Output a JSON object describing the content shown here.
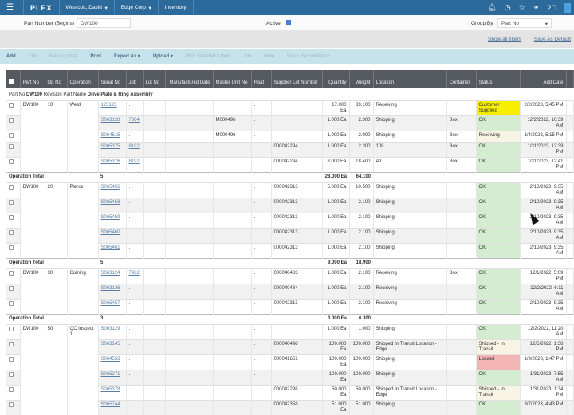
{
  "topbar": {
    "logo": "PLEX",
    "user": "Westcott, David",
    "company": "Edge Corp",
    "app": "Inventory"
  },
  "filter": {
    "part_label": "Part Number (Begins)",
    "part_value": "DW100",
    "active_label": "Active",
    "active_checked": true,
    "group_label": "Group By",
    "group_value": "Part No"
  },
  "links": {
    "show_all": "Show all filters",
    "save_default": "Save As Default"
  },
  "toolbar": [
    "Add",
    "Edit",
    "Mass Update",
    "Print",
    "Export As ▾",
    "Upload ▾",
    "Print Selected Labels",
    "Job",
    "Note",
    "Piece Reconciliation"
  ],
  "toolbar_enabled": [
    true,
    false,
    false,
    true,
    true,
    true,
    false,
    false,
    false,
    false
  ],
  "columns": [
    "Part No",
    "Op No",
    "Operation",
    "Serial No",
    "Job",
    "Lot No",
    "Manufactured Date",
    "Master Unit No",
    "Heat",
    "Supplier Lot Number",
    "Quantity",
    "Weight",
    "Location",
    "Container",
    "Status",
    "Add Date"
  ],
  "group": {
    "prefix": "Part No",
    "part": "DW100",
    "rev": "Revision",
    "name_label": "Part Name",
    "name": "Drive Plate & Ring Assembly"
  },
  "total_label": "Operation Total",
  "colors": {
    "ok": "#d4edd0",
    "customer_supplied": "#f6f000",
    "loaded": "#f3b4b4",
    "receiving": "#f8f4e4",
    "header": "#555a60",
    "topbar": "#2c6a9c"
  },
  "operations": [
    {
      "part": "DW100",
      "op": "10",
      "operation": "Weld",
      "rows": [
        {
          "serial": "123123",
          "job": ".",
          "master": "",
          "heat": ".",
          "lot": "",
          "qty": "17.000 Ea",
          "wt": "39.100",
          "loc": "Receiving",
          "cont": "",
          "status": "Customer Supplied",
          "st": "yellow",
          "date": "2/2/2023, 5:45 PM"
        },
        {
          "serial": "S063128",
          "job": "7864",
          "master": "M000496",
          "heat": ".",
          "lot": "",
          "qty": "1.000 Ea",
          "wt": "2.300",
          "loc": "Shipping",
          "cont": "Box",
          "status": "OK",
          "st": "ok",
          "date": "12/2/2022, 10:39 AM"
        },
        {
          "serial": "S064515",
          "job": ".",
          "master": "M000496",
          "heat": ".",
          "lot": "",
          "qty": "1.000 Ea",
          "wt": "2.000",
          "loc": "Shipping",
          "cont": "Box",
          "status": "Receiving",
          "st": "beige",
          "date": "1/4/2023, 5:15 PM"
        },
        {
          "serial": "S065375",
          "job": "8192",
          "master": "",
          "heat": ".",
          "lot": "000042294",
          "qty": "1.000 Ea",
          "wt": "2.300",
          "loc": "108",
          "cont": "Box",
          "status": "OK",
          "st": "ok",
          "date": "1/31/2023, 12:39 PM"
        },
        {
          "serial": "S065376",
          "job": "8192",
          "master": "",
          "heat": ".",
          "lot": "000042294",
          "qty": "8.000 Ea",
          "wt": "18.400",
          "loc": "A1",
          "cont": "Box",
          "status": "OK",
          "st": "ok",
          "date": "1/31/2023, 12:41 PM"
        }
      ],
      "total": {
        "count": "5",
        "qty": "28.000 Ea",
        "wt": "64.100"
      }
    },
    {
      "part": "DW100",
      "op": "20",
      "operation": "Pierce",
      "rows": [
        {
          "serial": "S065456",
          "job": ".",
          "master": "",
          "heat": ".",
          "lot": "000042313",
          "qty": "5.000 Ea",
          "wt": "10.500",
          "loc": "Shipping",
          "cont": "",
          "status": "OK",
          "st": "ok",
          "date": "2/10/2023, 9:35 AM"
        },
        {
          "serial": "S065458",
          "job": ".",
          "master": "",
          "heat": ".",
          "lot": "000042313",
          "qty": "1.000 Ea",
          "wt": "2.100",
          "loc": "Shipping",
          "cont": "",
          "status": "OK",
          "st": "ok",
          "date": "2/10/2023, 9:35 AM"
        },
        {
          "serial": "S065459",
          "job": ".",
          "master": "",
          "heat": ".",
          "lot": "000042313",
          "qty": "1.000 Ea",
          "wt": "2.100",
          "loc": "Shipping",
          "cont": "",
          "status": "OK",
          "st": "ok",
          "date": "2/10/2023, 9:35 AM"
        },
        {
          "serial": "S065460",
          "job": ".",
          "master": "",
          "heat": ".",
          "lot": "000042313",
          "qty": "1.000 Ea",
          "wt": "2.100",
          "loc": "Shipping",
          "cont": "",
          "status": "OK",
          "st": "ok",
          "date": "2/10/2023, 9:35 AM"
        },
        {
          "serial": "S065461",
          "job": ".",
          "master": "",
          "heat": ".",
          "lot": "000042313",
          "qty": "1.000 Ea",
          "wt": "2.100",
          "loc": "Shipping",
          "cont": "",
          "status": "OK",
          "st": "ok",
          "date": "2/10/2023, 9:35 AM"
        }
      ],
      "total": {
        "count": "5",
        "qty": "9.000 Ea",
        "wt": "18.900"
      }
    },
    {
      "part": "DW100",
      "op": "30",
      "operation": "Coining",
      "rows": [
        {
          "serial": "S063124",
          "job": "7982",
          "master": "",
          "heat": ".",
          "lot": "000040483",
          "qty": "1.000 Ea",
          "wt": "2.100",
          "loc": "Receiving",
          "cont": "Box",
          "status": "OK",
          "st": "ok",
          "date": "12/1/2022, 5:09 PM"
        },
        {
          "serial": "S063126",
          "job": ".",
          "master": "",
          "heat": ".",
          "lot": "000040484",
          "qty": "1.000 Ea",
          "wt": "2.100",
          "loc": "Receiving",
          "cont": "",
          "status": "OK",
          "st": "ok",
          "date": "12/2/2022, 6:11 AM"
        },
        {
          "serial": "S065457",
          "job": ".",
          "master": "",
          "heat": ".",
          "lot": "000042313",
          "qty": "1.000 Ea",
          "wt": "2.100",
          "loc": "Receiving",
          "cont": "",
          "status": "OK",
          "st": "ok",
          "date": "2/10/2023, 9:35 AM"
        }
      ],
      "total": {
        "count": "3",
        "qty": "3.000 Ea",
        "wt": "6.300"
      }
    },
    {
      "part": "DW100",
      "op": "50",
      "operation": "QC Inspect 1",
      "rows": [
        {
          "serial": "S063129",
          "job": ".",
          "master": "",
          "heat": ".",
          "lot": "",
          "qty": "1.000 Ea",
          "wt": "1.000",
          "loc": "Shipping",
          "cont": "",
          "status": "OK",
          "st": "ok",
          "date": "12/2/2022, 11:20 AM"
        },
        {
          "serial": "S063145",
          "job": ".",
          "master": "",
          "heat": ".",
          "lot": "000040498",
          "qty": "100.000 Ea",
          "wt": "100.000",
          "loc": "Shipped In Transit Location - Edge",
          "cont": "",
          "status": "Shipped - In Transit",
          "st": "beige",
          "date": "12/5/2022, 1:38 PM"
        },
        {
          "serial": "S064553",
          "job": ".",
          "master": "",
          "heat": ".",
          "lot": "000041651",
          "qty": "100.000 Ea",
          "wt": "100.000",
          "loc": "Shipping",
          "cont": "",
          "status": "Loaded",
          "st": "red",
          "date": "1/9/2023, 1:47 PM"
        },
        {
          "serial": "S065271",
          "job": ".",
          "master": "",
          "heat": ".",
          "lot": "",
          "qty": "100.000 Ea",
          "wt": "100.000",
          "loc": "Shipping",
          "cont": "",
          "status": "OK",
          "st": "ok",
          "date": "1/31/2023, 7:55 AM"
        },
        {
          "serial": "S065378",
          "job": ".",
          "master": "",
          "heat": ".",
          "lot": "000042298",
          "qty": "50.000 Ea",
          "wt": "50.000",
          "loc": "Shipped In Transit Location - Edge",
          "cont": "",
          "status": "Shipped - In Transit",
          "st": "beige",
          "date": "1/31/2023, 1:34 PM"
        },
        {
          "serial": "S065744",
          "job": ".",
          "master": "",
          "heat": ".",
          "lot": "000042358",
          "qty": "51.000 Ea",
          "wt": "51.000",
          "loc": "Shipping",
          "cont": "",
          "status": "OK",
          "st": "ok",
          "date": "3/7/2023, 4:43 PM"
        }
      ]
    }
  ]
}
